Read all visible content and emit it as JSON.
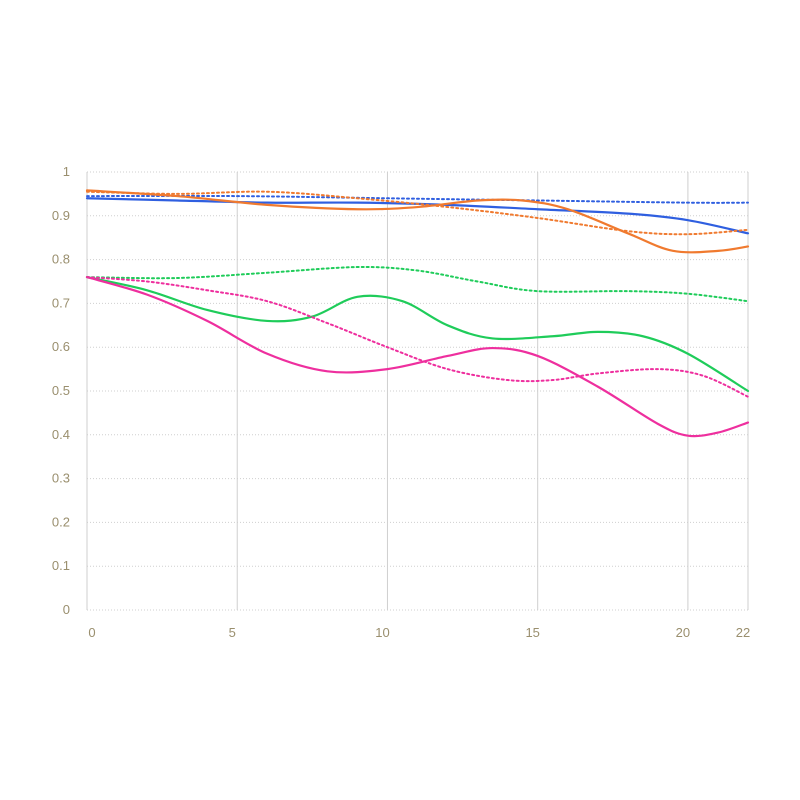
{
  "chart_data": {
    "type": "line",
    "title": "",
    "xlabel": "",
    "ylabel": "",
    "xlim": [
      0,
      22
    ],
    "ylim": [
      0,
      1
    ],
    "grid": true,
    "x_ticks": [
      0,
      5,
      10,
      15,
      20,
      22
    ],
    "x_tick_labels": [
      "0",
      "5",
      "10",
      "15",
      "20",
      "22"
    ],
    "y_ticks": [
      0,
      0.1,
      0.2,
      0.3,
      0.4,
      0.5,
      0.6,
      0.7,
      0.8,
      0.9,
      1
    ],
    "y_tick_labels": [
      "0",
      "0.1",
      "0.2",
      "0.3",
      "0.4",
      "0.5",
      "0.6",
      "0.7",
      "0.8",
      "0.9",
      "1"
    ],
    "series": [
      {
        "color": "#2f5fe0",
        "style": "solid",
        "points": [
          [
            0,
            0.94
          ],
          [
            3,
            0.935
          ],
          [
            6,
            0.93
          ],
          [
            9,
            0.93
          ],
          [
            12,
            0.925
          ],
          [
            15,
            0.915
          ],
          [
            18,
            0.905
          ],
          [
            20,
            0.89
          ],
          [
            22,
            0.86
          ]
        ]
      },
      {
        "color": "#2f5fe0",
        "style": "dotted",
        "points": [
          [
            0,
            0.945
          ],
          [
            5,
            0.945
          ],
          [
            10,
            0.94
          ],
          [
            15,
            0.935
          ],
          [
            20,
            0.93
          ],
          [
            22,
            0.93
          ]
        ]
      },
      {
        "color": "#f07a2f",
        "style": "solid",
        "points": [
          [
            0,
            0.958
          ],
          [
            3,
            0.945
          ],
          [
            6,
            0.925
          ],
          [
            9,
            0.915
          ],
          [
            11,
            0.92
          ],
          [
            13,
            0.935
          ],
          [
            14.5,
            0.935
          ],
          [
            16,
            0.915
          ],
          [
            18,
            0.86
          ],
          [
            19.5,
            0.82
          ],
          [
            21,
            0.82
          ],
          [
            22,
            0.83
          ]
        ]
      },
      {
        "color": "#f07a2f",
        "style": "dotted",
        "points": [
          [
            0,
            0.955
          ],
          [
            3,
            0.95
          ],
          [
            6,
            0.955
          ],
          [
            9,
            0.94
          ],
          [
            12,
            0.92
          ],
          [
            15,
            0.895
          ],
          [
            18,
            0.865
          ],
          [
            20,
            0.858
          ],
          [
            22,
            0.868
          ]
        ]
      },
      {
        "color": "#1fcc5a",
        "style": "solid",
        "points": [
          [
            0,
            0.76
          ],
          [
            2,
            0.73
          ],
          [
            4,
            0.685
          ],
          [
            6,
            0.66
          ],
          [
            7.5,
            0.67
          ],
          [
            9,
            0.715
          ],
          [
            10.5,
            0.705
          ],
          [
            12,
            0.65
          ],
          [
            13.5,
            0.62
          ],
          [
            15.5,
            0.625
          ],
          [
            17,
            0.635
          ],
          [
            18.5,
            0.625
          ],
          [
            20,
            0.585
          ],
          [
            22,
            0.5
          ]
        ]
      },
      {
        "color": "#1fcc5a",
        "style": "dotted",
        "points": [
          [
            0,
            0.76
          ],
          [
            3,
            0.758
          ],
          [
            6,
            0.77
          ],
          [
            9,
            0.783
          ],
          [
            11,
            0.775
          ],
          [
            13,
            0.75
          ],
          [
            15,
            0.728
          ],
          [
            18,
            0.728
          ],
          [
            20,
            0.722
          ],
          [
            22,
            0.705
          ]
        ]
      },
      {
        "color": "#ee2f9e",
        "style": "solid",
        "points": [
          [
            0,
            0.76
          ],
          [
            2,
            0.72
          ],
          [
            4,
            0.66
          ],
          [
            6,
            0.585
          ],
          [
            8,
            0.545
          ],
          [
            10,
            0.55
          ],
          [
            12,
            0.58
          ],
          [
            13.5,
            0.598
          ],
          [
            15,
            0.58
          ],
          [
            17,
            0.51
          ],
          [
            19,
            0.425
          ],
          [
            20,
            0.398
          ],
          [
            21,
            0.405
          ],
          [
            22,
            0.428
          ]
        ]
      },
      {
        "color": "#ee2f9e",
        "style": "dotted",
        "points": [
          [
            0,
            0.76
          ],
          [
            2,
            0.75
          ],
          [
            4,
            0.73
          ],
          [
            6,
            0.705
          ],
          [
            8,
            0.655
          ],
          [
            10,
            0.6
          ],
          [
            12,
            0.55
          ],
          [
            14,
            0.525
          ],
          [
            15.5,
            0.525
          ],
          [
            17,
            0.54
          ],
          [
            19,
            0.55
          ],
          [
            20.5,
            0.535
          ],
          [
            22,
            0.487
          ]
        ]
      }
    ]
  }
}
